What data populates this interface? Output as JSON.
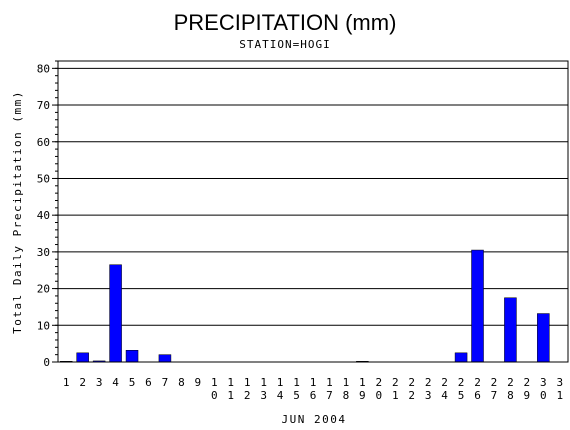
{
  "chart_data": {
    "type": "bar",
    "title": "PRECIPITATION (mm)",
    "subtitle": "STATION=HOGI",
    "xlabel": "JUN 2004",
    "ylabel": "Total Daily Precipitation (mm)",
    "ylim": [
      0,
      82
    ],
    "yticks": [
      0,
      10,
      20,
      30,
      40,
      50,
      60,
      70,
      80
    ],
    "grid": true,
    "bar_color": "#0000ff",
    "categories": [
      "1",
      "2",
      "3",
      "4",
      "5",
      "6",
      "7",
      "8",
      "9",
      "10",
      "11",
      "12",
      "13",
      "14",
      "15",
      "16",
      "17",
      "18",
      "19",
      "20",
      "21",
      "22",
      "23",
      "24",
      "25",
      "26",
      "27",
      "28",
      "29",
      "30",
      "31"
    ],
    "values": [
      0.2,
      2.5,
      0.3,
      26.5,
      3.2,
      0,
      2.0,
      0,
      0,
      0,
      0,
      0,
      0,
      0,
      0,
      0,
      0,
      0,
      0.2,
      0,
      0,
      0,
      0,
      0,
      2.5,
      30.5,
      0,
      17.5,
      0,
      13.2,
      0
    ]
  }
}
